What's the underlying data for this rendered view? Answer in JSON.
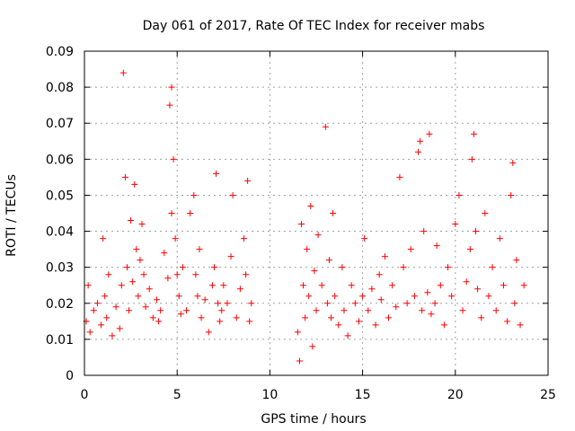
{
  "chart_data": {
    "type": "scatter",
    "title": "Day 061 of 2017, Rate Of TEC Index for receiver mabs",
    "xlabel": "GPS time / hours",
    "ylabel": "ROTI / TECUs",
    "xlim": [
      0,
      25
    ],
    "ylim": [
      0,
      0.09
    ],
    "xticks": [
      0,
      5,
      10,
      15,
      20,
      25
    ],
    "yticks": [
      0,
      0.01,
      0.02,
      0.03,
      0.04,
      0.05,
      0.06,
      0.07,
      0.08,
      0.09
    ],
    "xtick_labels": [
      "0",
      "5",
      "10",
      "15",
      "20",
      "25"
    ],
    "ytick_labels": [
      "0",
      "0.01",
      "0.02",
      "0.03",
      "0.04",
      "0.05",
      "0.06",
      "0.07",
      "0.08",
      "0.09"
    ],
    "grid": true,
    "marker": "plus",
    "color": "#ff0000",
    "x": [
      0.1,
      0.2,
      0.3,
      0.5,
      0.7,
      0.9,
      1.0,
      1.1,
      1.2,
      1.3,
      1.5,
      1.7,
      1.9,
      2.0,
      2.1,
      2.2,
      2.3,
      2.4,
      2.5,
      2.6,
      2.7,
      2.8,
      2.9,
      3.0,
      3.1,
      3.2,
      3.3,
      3.5,
      3.7,
      3.9,
      4.0,
      4.1,
      4.3,
      4.5,
      4.6,
      4.7,
      4.7,
      4.8,
      4.9,
      5.0,
      5.1,
      5.2,
      5.3,
      5.5,
      5.7,
      5.9,
      6.0,
      6.1,
      6.2,
      6.3,
      6.5,
      6.7,
      6.9,
      7.0,
      7.1,
      7.2,
      7.3,
      7.4,
      7.5,
      7.7,
      7.9,
      8.0,
      8.2,
      8.4,
      8.6,
      8.7,
      8.8,
      8.9,
      9.0,
      11.5,
      11.6,
      11.7,
      11.8,
      11.9,
      12.0,
      12.1,
      12.2,
      12.3,
      12.4,
      12.5,
      12.6,
      12.8,
      13.0,
      13.1,
      13.2,
      13.3,
      13.4,
      13.5,
      13.7,
      13.9,
      14.0,
      14.2,
      14.4,
      14.6,
      14.8,
      15.0,
      15.1,
      15.3,
      15.5,
      15.7,
      15.9,
      16.0,
      16.2,
      16.4,
      16.6,
      16.8,
      17.0,
      17.2,
      17.4,
      17.6,
      17.8,
      18.0,
      18.1,
      18.2,
      18.3,
      18.5,
      18.6,
      18.7,
      18.9,
      19.0,
      19.2,
      19.4,
      19.6,
      19.8,
      20.0,
      20.2,
      20.4,
      20.6,
      20.8,
      20.9,
      21.0,
      21.1,
      21.2,
      21.4,
      21.6,
      21.8,
      22.0,
      22.2,
      22.4,
      22.6,
      22.8,
      23.0,
      23.1,
      23.2,
      23.3,
      23.5,
      23.7
    ],
    "y": [
      0.015,
      0.025,
      0.012,
      0.018,
      0.02,
      0.014,
      0.038,
      0.022,
      0.016,
      0.028,
      0.011,
      0.019,
      0.013,
      0.025,
      0.084,
      0.055,
      0.03,
      0.018,
      0.043,
      0.026,
      0.053,
      0.035,
      0.022,
      0.032,
      0.042,
      0.028,
      0.019,
      0.024,
      0.016,
      0.021,
      0.015,
      0.018,
      0.034,
      0.027,
      0.075,
      0.08,
      0.045,
      0.06,
      0.038,
      0.028,
      0.022,
      0.017,
      0.03,
      0.018,
      0.045,
      0.05,
      0.028,
      0.022,
      0.035,
      0.016,
      0.021,
      0.012,
      0.025,
      0.03,
      0.056,
      0.02,
      0.015,
      0.018,
      0.025,
      0.02,
      0.033,
      0.05,
      0.016,
      0.024,
      0.038,
      0.028,
      0.054,
      0.015,
      0.02,
      0.012,
      0.004,
      0.042,
      0.025,
      0.016,
      0.035,
      0.022,
      0.047,
      0.008,
      0.029,
      0.018,
      0.039,
      0.025,
      0.069,
      0.02,
      0.032,
      0.016,
      0.045,
      0.022,
      0.014,
      0.03,
      0.018,
      0.011,
      0.025,
      0.02,
      0.015,
      0.022,
      0.038,
      0.018,
      0.024,
      0.014,
      0.028,
      0.021,
      0.033,
      0.016,
      0.025,
      0.019,
      0.055,
      0.03,
      0.02,
      0.035,
      0.022,
      0.062,
      0.065,
      0.018,
      0.04,
      0.023,
      0.067,
      0.017,
      0.02,
      0.036,
      0.025,
      0.014,
      0.03,
      0.022,
      0.042,
      0.05,
      0.018,
      0.026,
      0.035,
      0.06,
      0.067,
      0.04,
      0.024,
      0.016,
      0.045,
      0.022,
      0.03,
      0.018,
      0.038,
      0.025,
      0.015,
      0.05,
      0.059,
      0.02,
      0.032,
      0.014,
      0.025
    ]
  }
}
